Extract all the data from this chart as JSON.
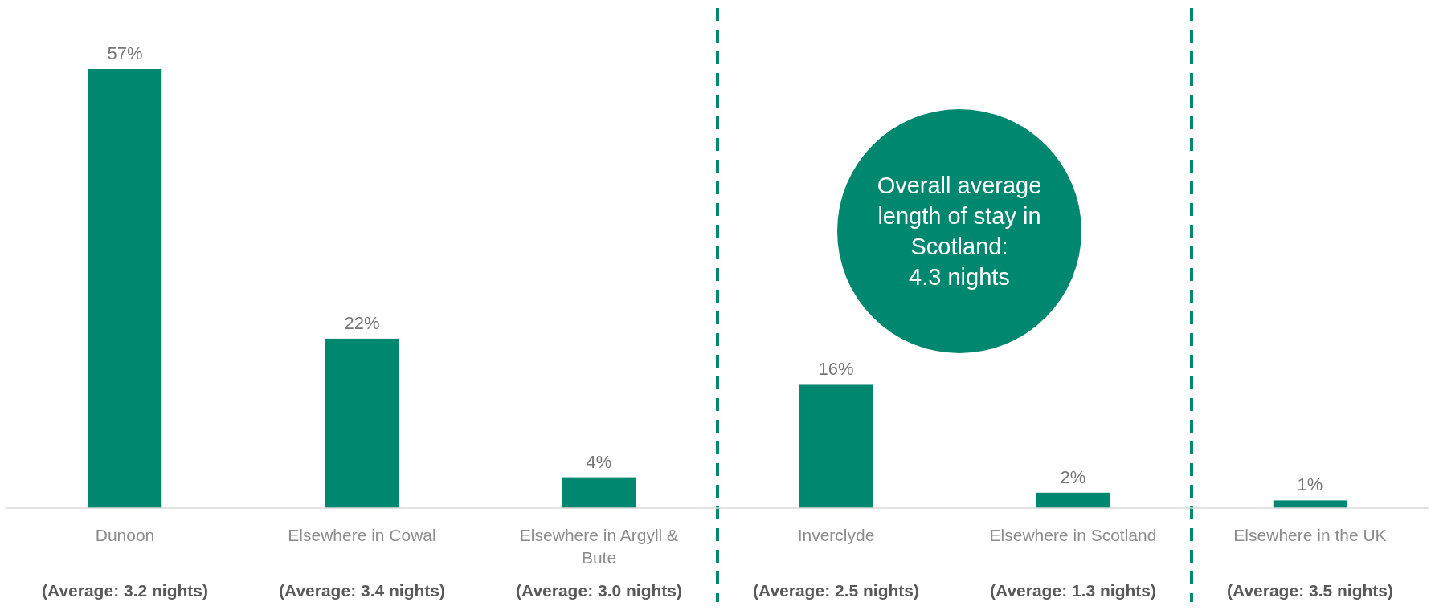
{
  "chart_data": {
    "type": "bar",
    "categories": [
      "Dunoon",
      "Elsewhere in Cowal",
      "Elsewhere in Argyll & Bute",
      "Inverclyde",
      "Elsewhere in Scotland",
      "Elsewhere in the UK"
    ],
    "values": [
      57,
      22,
      4,
      16,
      2,
      1
    ],
    "color": "#00876f",
    "data_labels": true,
    "value_labels": [
      "57%",
      "22%",
      "4%",
      "16%",
      "2%",
      "1%"
    ],
    "annotations": [
      "Overall average length of stay in Scotland: 4.3 nights",
      "(Average: 3.2 nights)",
      "(Average: 3.4 nights)",
      "(Average: 3.0 nights)",
      "(Average: 2.5 nights)",
      "(Average: 1.3 nights)",
      "(Average: 3.5 nights)"
    ]
  }
}
